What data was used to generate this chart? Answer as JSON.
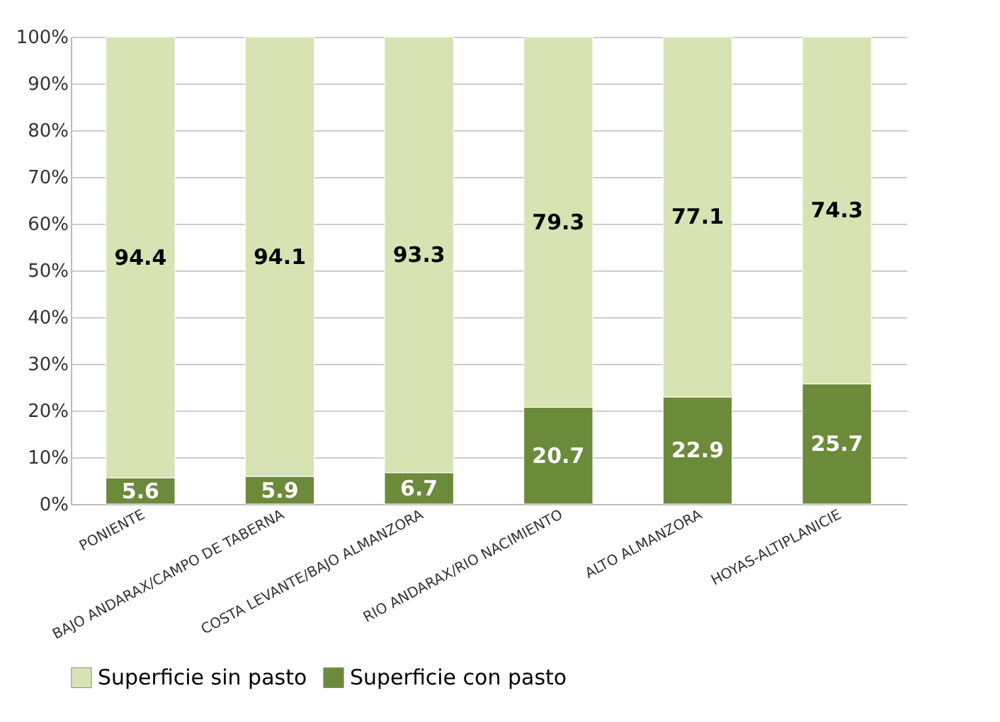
{
  "chart_data": {
    "type": "bar",
    "stacked": true,
    "categories": [
      "PONIENTE",
      "BAJO ANDARAX/CAMPO DE TABERNA",
      "COSTA LEVANTE/BAJO ALMANZORA",
      "RIO ANDARAX/RIO NACIMIENTO",
      "ALTO ALMANZORA",
      "HOYAS-ALTIPLANICIE"
    ],
    "series": [
      {
        "name": "Superficie con pasto",
        "color": "#6b8a3a",
        "values": [
          5.6,
          5.9,
          6.7,
          20.7,
          22.9,
          25.7
        ]
      },
      {
        "name": "Superficie sin pasto",
        "color": "#d8e3b4",
        "values": [
          94.4,
          94.1,
          93.3,
          79.3,
          77.1,
          74.3
        ]
      }
    ],
    "ylim": [
      0,
      100
    ],
    "yticks": [
      {
        "value": 0,
        "label": "0%"
      },
      {
        "value": 10,
        "label": "10%"
      },
      {
        "value": 20,
        "label": "20%"
      },
      {
        "value": 30,
        "label": "30%"
      },
      {
        "value": 40,
        "label": "40%"
      },
      {
        "value": 50,
        "label": "50%"
      },
      {
        "value": 60,
        "label": "60%"
      },
      {
        "value": 70,
        "label": "70%"
      },
      {
        "value": 80,
        "label": "80%"
      },
      {
        "value": 90,
        "label": "90%"
      },
      {
        "value": 100,
        "label": "100%"
      }
    ],
    "grid": "y",
    "legend": "bottom",
    "data_labels": true
  }
}
